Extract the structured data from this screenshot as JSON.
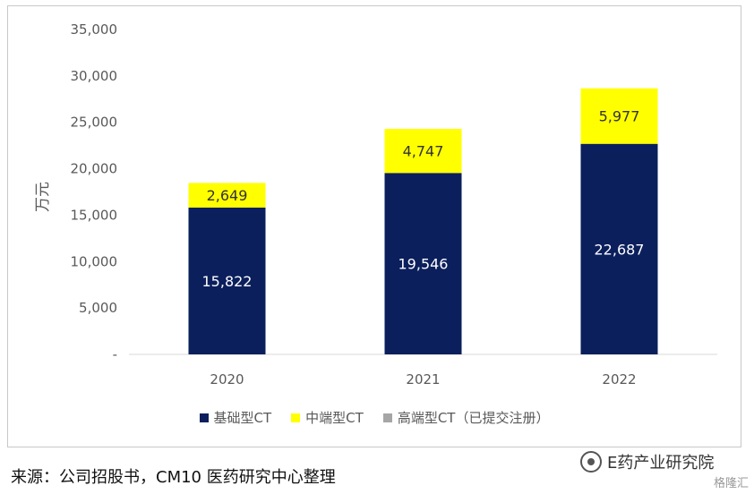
{
  "chart_data": {
    "type": "bar",
    "stacked": true,
    "categories": [
      "2020",
      "2021",
      "2022"
    ],
    "series": [
      {
        "name": "基础型CT",
        "values": [
          15822,
          19546,
          22687
        ],
        "color": "#0b1f5c",
        "label_color": "#ffffff"
      },
      {
        "name": "中端型CT",
        "values": [
          2649,
          4747,
          5977
        ],
        "color": "#ffff00",
        "label_color": "#333333"
      },
      {
        "name": "高端型CT（已提交注册）",
        "values": [
          0,
          0,
          0
        ],
        "color": "#a6a6a6",
        "label_color": "#333333"
      }
    ],
    "data_labels": [
      [
        "15,822",
        "19,546",
        "22,687"
      ],
      [
        "2,649",
        "4,747",
        "5,977"
      ],
      [
        "",
        "",
        ""
      ]
    ],
    "ylabel": "万元",
    "ylim": [
      0,
      35000
    ],
    "yticks": [
      0,
      5000,
      10000,
      15000,
      20000,
      25000,
      30000,
      35000
    ],
    "ytick_labels": [
      "-",
      "5,000",
      "10,000",
      "15,000",
      "20,000",
      "25,000",
      "30,000",
      "35,000"
    ],
    "legend_position": "bottom",
    "grid": false
  },
  "source_text": "来源：公司招股书，CM10 医药研究中心整理",
  "watermark_text": "E药产业研究院",
  "corner_text": "格隆汇"
}
